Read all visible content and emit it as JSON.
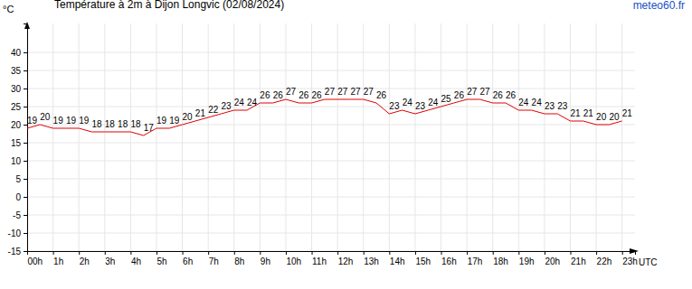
{
  "chart_data": {
    "type": "line",
    "title": "Température à 2m à Dijon Longvic (02/08/2024)",
    "source": "meteo60.fr",
    "y_label": "°C",
    "x_label": "UTC",
    "x": [
      0,
      0.5,
      1,
      1.5,
      2,
      2.5,
      3,
      3.5,
      4,
      4.5,
      5,
      5.5,
      6,
      6.5,
      7,
      7.5,
      8,
      8.5,
      9,
      9.5,
      10,
      10.5,
      11,
      11.5,
      12,
      12.5,
      13,
      13.5,
      14,
      14.5,
      15,
      15.5,
      16,
      16.5,
      17,
      17.5,
      18,
      18.5,
      19,
      19.5,
      20,
      20.5,
      21,
      21.5,
      22,
      22.5,
      23
    ],
    "series": [
      {
        "name": "Température",
        "color": "#e00000",
        "values": [
          19,
          20,
          19,
          19,
          19,
          18,
          18,
          18,
          18,
          17,
          19,
          19,
          20,
          21,
          22,
          23,
          24,
          24,
          26,
          26,
          27,
          26,
          26,
          27,
          27,
          27,
          27,
          26,
          23,
          24,
          23,
          24,
          25,
          26,
          27,
          27,
          26,
          26,
          24,
          24,
          23,
          23,
          21,
          21,
          20,
          20,
          21
        ]
      }
    ],
    "xlim": [
      0,
      23.5
    ],
    "xticks": [
      {
        "value": 0,
        "label": "00h"
      },
      {
        "value": 1,
        "label": "1h"
      },
      {
        "value": 2,
        "label": "2h"
      },
      {
        "value": 3,
        "label": "3h"
      },
      {
        "value": 4,
        "label": "4h"
      },
      {
        "value": 5,
        "label": "5h"
      },
      {
        "value": 6,
        "label": "6h"
      },
      {
        "value": 7,
        "label": "7h"
      },
      {
        "value": 8,
        "label": "8h"
      },
      {
        "value": 9,
        "label": "9h"
      },
      {
        "value": 10,
        "label": "10h"
      },
      {
        "value": 11,
        "label": "11h"
      },
      {
        "value": 12,
        "label": "12h"
      },
      {
        "value": 13,
        "label": "13h"
      },
      {
        "value": 14,
        "label": "14h"
      },
      {
        "value": 15,
        "label": "15h"
      },
      {
        "value": 16,
        "label": "16h"
      },
      {
        "value": 17,
        "label": "17h"
      },
      {
        "value": 18,
        "label": "18h"
      },
      {
        "value": 19,
        "label": "19h"
      },
      {
        "value": 20,
        "label": "20h"
      },
      {
        "value": 21,
        "label": "21h"
      },
      {
        "value": 22,
        "label": "22h"
      },
      {
        "value": 23,
        "label": "23h"
      }
    ],
    "ylim": [
      -15,
      48
    ],
    "yticks": [
      -15,
      -10,
      -5,
      0,
      5,
      10,
      15,
      20,
      25,
      30,
      35,
      40
    ],
    "grid": true,
    "data_labels": true
  }
}
